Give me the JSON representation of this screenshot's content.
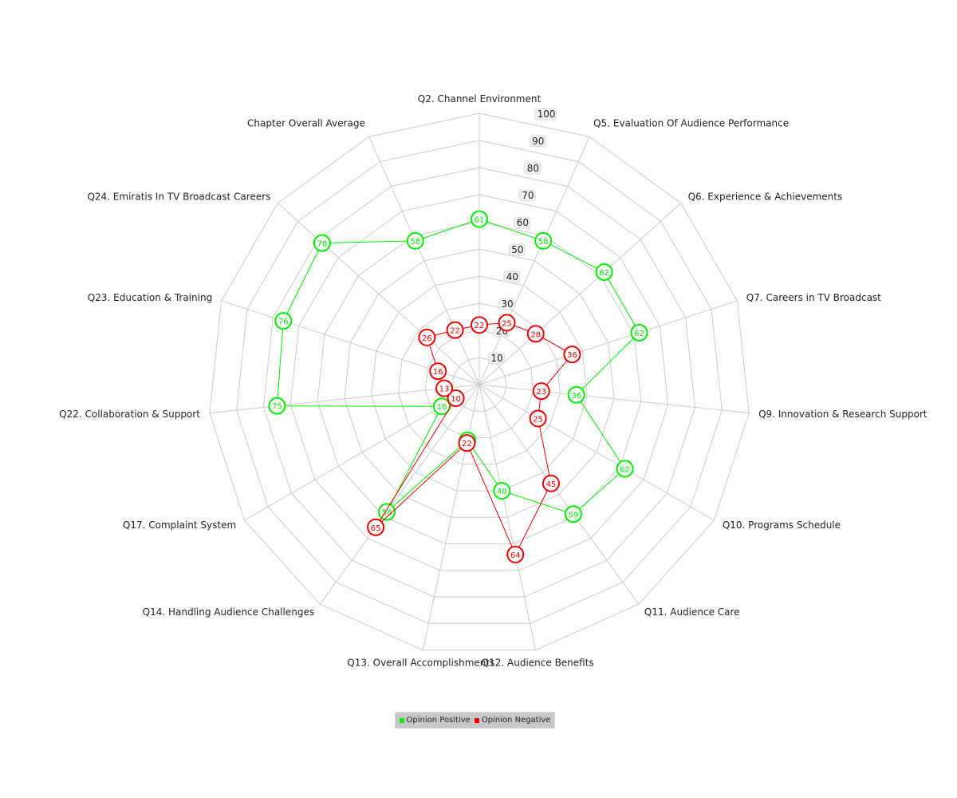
{
  "chart_data": {
    "type": "radar",
    "categories": [
      "Q2. Channel Environment",
      "Q5. Evaluation Of Audience Performance",
      "Q6. Experience & Achievements",
      "Q7. Careers in TV Broadcast",
      "Q9. Innovation & Research Support",
      "Q10. Programs Schedule",
      "Q11. Audience Care",
      "Q12. Audience Benefits",
      "Q13. Overall Accomplishments",
      "Q14. Handling Audience Challenges",
      "Q17. Complaint System",
      "Q22. Collaboration & Support",
      "Q23. Education & Training",
      "Q24. Emiratis In TV Broadcast Careers",
      "Chapter Overall Average"
    ],
    "series": [
      {
        "name": "Opinion Positive",
        "color": "#00ee00",
        "values": [
          61,
          58,
          62,
          62,
          36,
          62,
          59,
          40,
          21,
          58,
          16,
          75,
          76,
          78,
          58
        ]
      },
      {
        "name": "Opinion Negative",
        "color": "#ee0000",
        "values": [
          22,
          25,
          28,
          36,
          23,
          25,
          45,
          64,
          22,
          65,
          10,
          13,
          16,
          26,
          22
        ]
      }
    ],
    "radial_ticks": [
      10,
      20,
      30,
      40,
      50,
      60,
      70,
      80,
      90,
      100
    ],
    "range": [
      0,
      100
    ],
    "grid": true,
    "legend_position": "bottom-center"
  }
}
